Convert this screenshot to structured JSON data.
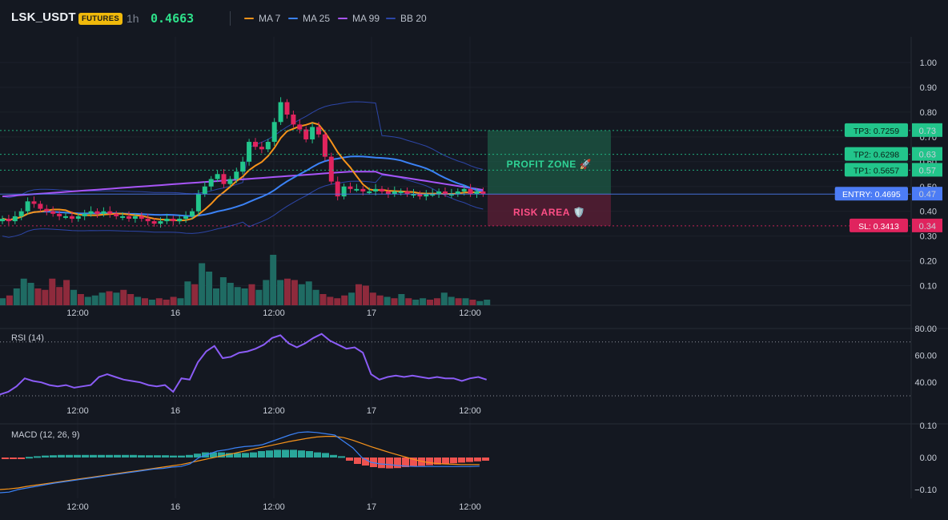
{
  "header": {
    "symbol": "LSK_USDT",
    "badge": "FUTURES",
    "timeframe": "1h",
    "price": "0.4663",
    "indicators": [
      {
        "label": "MA 7",
        "color": "#f7931a"
      },
      {
        "label": "MA 25",
        "color": "#3b82f6"
      },
      {
        "label": "MA 99",
        "color": "#a855f7"
      },
      {
        "label": "BB 20",
        "color": "#2d46a8"
      }
    ]
  },
  "colors": {
    "background": "#141821",
    "up": "#22c58b",
    "down": "#e0245e",
    "volume_up": "#1f6b63",
    "volume_down": "#8e2a3c",
    "ma7": "#f7931a",
    "ma25": "#3b82f6",
    "ma99": "#a855f7",
    "bb": "#2d46a8",
    "rsi": "#8b5cf6",
    "macd": "#3b82f6",
    "signal": "#f7931a",
    "profit": "#22c58b",
    "risk": "#e0245e"
  },
  "time_axis_labels": [
    "12:00",
    "16",
    "12:00",
    "17",
    "12:00"
  ],
  "price_axis": {
    "ticks": [
      "1.00",
      "0.90",
      "0.80",
      "0.70",
      "0.60",
      "0.50",
      "0.40",
      "0.30",
      "0.20",
      "0.10"
    ],
    "values": [
      1.0,
      0.9,
      0.8,
      0.7,
      0.6,
      0.5,
      0.4,
      0.3,
      0.2,
      0.1
    ]
  },
  "rsi_axis": {
    "ticks": [
      "80.00",
      "60.00",
      "40.00"
    ],
    "values": [
      80,
      60,
      40
    ]
  },
  "macd_axis": {
    "ticks": [
      "0.10",
      "0.00",
      "−0.10"
    ],
    "values": [
      0.1,
      0.0,
      -0.1
    ]
  },
  "levels": [
    {
      "label": "TP3: 0.7259",
      "axis": "0.73",
      "value": 0.7259,
      "kind": "tp"
    },
    {
      "label": "TP2: 0.6298",
      "axis": "0.63",
      "value": 0.6298,
      "kind": "tp"
    },
    {
      "label": "TP1: 0.5657",
      "axis": "0.57",
      "value": 0.5657,
      "kind": "tp"
    },
    {
      "label": "ENTRY: 0.4695",
      "axis": "0.47",
      "value": 0.4695,
      "kind": "entry"
    },
    {
      "label": "SL: 0.3413",
      "axis": "0.34",
      "value": 0.3413,
      "kind": "sl"
    }
  ],
  "zones": {
    "profit_label": "PROFIT ZONE 🚀",
    "risk_label": "RISK AREA 🛡️"
  },
  "rsi_panel": {
    "label": "RSI (14)"
  },
  "macd_panel": {
    "label": "MACD (12, 26, 9)"
  },
  "chart_data": {
    "type": "candlestick",
    "close": [
      0.37,
      0.36,
      0.38,
      0.4,
      0.44,
      0.43,
      0.41,
      0.4,
      0.39,
      0.38,
      0.38,
      0.37,
      0.38,
      0.39,
      0.4,
      0.39,
      0.4,
      0.39,
      0.38,
      0.38,
      0.37,
      0.38,
      0.37,
      0.36,
      0.35,
      0.36,
      0.37,
      0.36,
      0.37,
      0.38,
      0.4,
      0.47,
      0.5,
      0.53,
      0.55,
      0.51,
      0.53,
      0.56,
      0.6,
      0.68,
      0.66,
      0.65,
      0.68,
      0.76,
      0.84,
      0.79,
      0.75,
      0.73,
      0.69,
      0.74,
      0.71,
      0.62,
      0.52,
      0.46,
      0.5,
      0.49,
      0.49,
      0.48,
      0.48,
      0.49,
      0.48,
      0.47,
      0.48,
      0.48,
      0.47,
      0.47,
      0.46,
      0.47,
      0.47,
      0.48,
      0.47,
      0.47,
      0.48,
      0.49,
      0.47,
      0.48,
      0.47
    ],
    "open_first": 0.36,
    "volume_rel": [
      0.25,
      0.35,
      0.6,
      0.95,
      0.8,
      0.6,
      0.55,
      0.95,
      0.65,
      0.9,
      0.55,
      0.4,
      0.3,
      0.35,
      0.45,
      0.5,
      0.45,
      0.55,
      0.4,
      0.3,
      0.25,
      0.2,
      0.25,
      0.2,
      0.3,
      0.25,
      0.85,
      0.75,
      1.5,
      1.2,
      0.6,
      1.0,
      0.8,
      0.65,
      0.6,
      0.75,
      0.55,
      0.9,
      1.8,
      0.9,
      0.95,
      0.9,
      0.75,
      0.85,
      0.55,
      0.4,
      0.3,
      0.25,
      0.35,
      0.45,
      0.75,
      0.7,
      0.45,
      0.35,
      0.3,
      0.25,
      0.4,
      0.25,
      0.2,
      0.25,
      0.2,
      0.25,
      0.45,
      0.3,
      0.25,
      0.25,
      0.2,
      0.15,
      0.2
    ],
    "rsi": [
      31,
      33,
      37,
      43,
      41,
      40,
      38,
      37,
      38,
      36,
      37,
      38,
      44,
      46,
      44,
      42,
      41,
      40,
      38,
      37,
      38,
      33,
      43,
      42,
      55,
      63,
      67,
      58,
      59,
      62,
      63,
      65,
      68,
      73,
      75,
      69,
      66,
      69,
      73,
      76,
      71,
      68,
      65,
      66,
      62,
      46,
      42,
      44,
      45,
      44,
      45,
      44,
      43,
      44,
      43,
      43,
      41,
      43,
      44,
      42
    ],
    "macd": [
      -0.11,
      -0.108,
      -0.1,
      -0.095,
      -0.09,
      -0.085,
      -0.08,
      -0.076,
      -0.072,
      -0.068,
      -0.064,
      -0.06,
      -0.056,
      -0.052,
      -0.048,
      -0.044,
      -0.04,
      -0.036,
      -0.034,
      -0.03,
      -0.028,
      -0.02,
      0.0,
      0.01,
      0.02,
      0.024,
      0.03,
      0.034,
      0.036,
      0.04,
      0.05,
      0.06,
      0.07,
      0.078,
      0.08,
      0.078,
      0.074,
      0.07,
      0.05,
      0.03,
      0.0,
      -0.015,
      -0.02,
      -0.022,
      -0.025,
      -0.027,
      -0.028,
      -0.028,
      -0.028,
      -0.028,
      -0.028,
      -0.028,
      -0.028,
      -0.027
    ],
    "signal": [
      -0.1,
      -0.098,
      -0.095,
      -0.09,
      -0.086,
      -0.082,
      -0.078,
      -0.074,
      -0.07,
      -0.066,
      -0.062,
      -0.058,
      -0.054,
      -0.05,
      -0.046,
      -0.042,
      -0.038,
      -0.034,
      -0.03,
      -0.026,
      -0.022,
      -0.016,
      -0.01,
      -0.004,
      0.002,
      0.008,
      0.014,
      0.02,
      0.026,
      0.032,
      0.038,
      0.044,
      0.05,
      0.055,
      0.06,
      0.064,
      0.066,
      0.066,
      0.062,
      0.054,
      0.044,
      0.034,
      0.025,
      0.016,
      0.008,
      0.0,
      -0.008,
      -0.014,
      -0.018,
      -0.02,
      -0.021,
      -0.022,
      -0.022,
      -0.022
    ],
    "histogram": [
      -0.005,
      -0.005,
      -0.004,
      0.002,
      0.004,
      0.006,
      0.007,
      0.008,
      0.008,
      0.008,
      0.008,
      0.008,
      0.008,
      0.008,
      0.008,
      0.008,
      0.008,
      0.007,
      0.007,
      0.007,
      0.007,
      0.006,
      0.006,
      0.008,
      0.012,
      0.016,
      0.016,
      0.016,
      0.014,
      0.014,
      0.014,
      0.016,
      0.02,
      0.022,
      0.024,
      0.024,
      0.024,
      0.022,
      0.02,
      0.016,
      0.014,
      0.008,
      0.004,
      -0.01,
      -0.02,
      -0.025,
      -0.03,
      -0.033,
      -0.034,
      -0.033,
      -0.03,
      -0.028,
      -0.026,
      -0.024,
      -0.022,
      -0.02,
      -0.018,
      -0.016,
      -0.014,
      -0.012,
      -0.01
    ]
  }
}
